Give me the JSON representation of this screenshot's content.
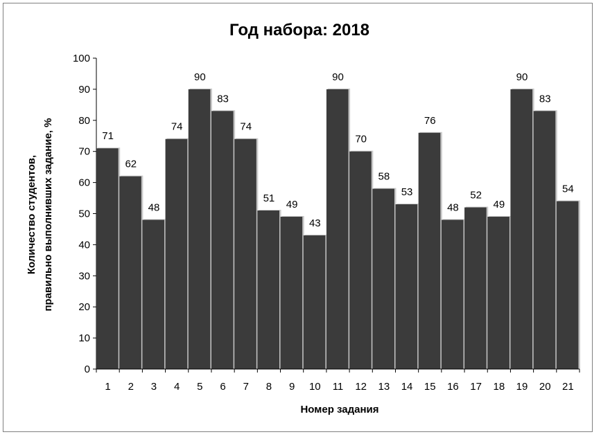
{
  "chart_data": {
    "type": "bar",
    "title": "Год набора: 2018",
    "xlabel": "Номер задания",
    "ylabel_lines": [
      "Количество студентов,",
      "правильно выполнивших задание, %"
    ],
    "categories": [
      "1",
      "2",
      "3",
      "4",
      "5",
      "6",
      "7",
      "8",
      "9",
      "10",
      "11",
      "12",
      "13",
      "14",
      "15",
      "16",
      "17",
      "18",
      "19",
      "20",
      "21"
    ],
    "values": [
      71,
      62,
      48,
      74,
      90,
      83,
      74,
      51,
      49,
      43,
      90,
      70,
      58,
      53,
      76,
      48,
      52,
      49,
      90,
      83,
      54
    ],
    "ylim": [
      0,
      100
    ],
    "yticks": [
      0,
      10,
      20,
      30,
      40,
      50,
      60,
      70,
      80,
      90,
      100
    ],
    "grid": false,
    "legend": "none",
    "colors": {
      "bar": "#3b3b3b",
      "axis": "#000000",
      "border": "#7f7f7f"
    }
  }
}
